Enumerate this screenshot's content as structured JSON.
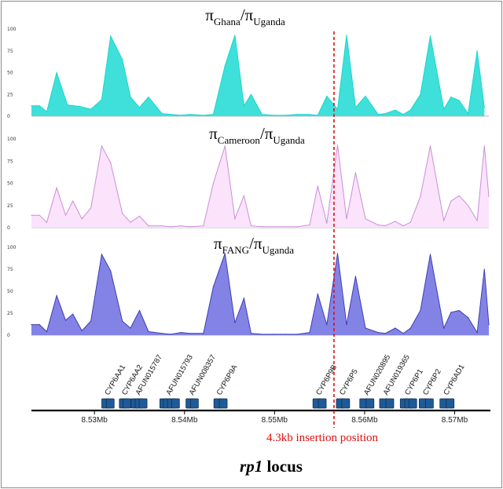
{
  "chart_data": [
    {
      "type": "area",
      "title": {
        "pi": "π",
        "num": "Ghana",
        "slash": "/",
        "den": "Uganda"
      },
      "ylim": [
        0,
        100
      ],
      "yticks": [
        "100",
        "75",
        "50",
        "25",
        "0"
      ],
      "color": "#19d6d0",
      "fill": "#3fe0da",
      "x": [
        8.523,
        8.5239,
        8.5247,
        8.5258,
        8.527,
        8.5284,
        8.5296,
        8.5308,
        8.5318,
        8.5331,
        8.534,
        8.535,
        8.536,
        8.5375,
        8.5385,
        8.5396,
        8.5406,
        8.5421,
        8.5432,
        8.5445,
        8.5456,
        8.5466,
        8.5474,
        8.5486,
        8.5499,
        8.5512,
        8.5525,
        8.5539,
        8.5548,
        8.5558,
        8.557,
        8.558,
        8.559,
        8.5601,
        8.5615,
        8.5623,
        8.5634,
        8.5643,
        8.5651,
        8.5662,
        8.5673,
        8.5688,
        8.5696,
        8.5705,
        8.5715,
        8.5725,
        8.5733
      ],
      "y": [
        12,
        12,
        5,
        50,
        13,
        11,
        8,
        19,
        92,
        65,
        22,
        10,
        22,
        3,
        2,
        1,
        2,
        1,
        2,
        58,
        93,
        12,
        25,
        2,
        1,
        1,
        2,
        2,
        1,
        23,
        8,
        93,
        10,
        23,
        2,
        3,
        7,
        2,
        7,
        25,
        92,
        8,
        22,
        18,
        3,
        75,
        10
      ]
    },
    {
      "type": "area",
      "title": {
        "pi": "π",
        "num": "Cameroon",
        "slash": "/",
        "den": "Uganda"
      },
      "ylim": [
        0,
        100
      ],
      "yticks": [
        "100",
        "75",
        "50",
        "25",
        "0"
      ],
      "color": "#c88fd8",
      "fill": "#fbe3fb",
      "x": [
        8.523,
        8.5239,
        8.5247,
        8.5258,
        8.5268,
        8.5276,
        8.5286,
        8.5296,
        8.5308,
        8.5318,
        8.5331,
        8.534,
        8.535,
        8.536,
        8.5375,
        8.5385,
        8.5396,
        8.5406,
        8.5421,
        8.5432,
        8.5445,
        8.5456,
        8.5466,
        8.5474,
        8.5486,
        8.5499,
        8.5512,
        8.5525,
        8.5539,
        8.5548,
        8.5558,
        8.557,
        8.558,
        8.559,
        8.5601,
        8.5615,
        8.5623,
        8.5634,
        8.5643,
        8.5651,
        8.5662,
        8.5673,
        8.5688,
        8.5696,
        8.5705,
        8.5715,
        8.5725,
        8.5733,
        8.5738
      ],
      "y": [
        14,
        14,
        6,
        45,
        14,
        30,
        10,
        22,
        92,
        73,
        16,
        6,
        13,
        2,
        2,
        1,
        2,
        1,
        2,
        50,
        92,
        10,
        36,
        2,
        1,
        1,
        1,
        1,
        3,
        47,
        5,
        93,
        10,
        62,
        10,
        3,
        2,
        7,
        2,
        6,
        35,
        92,
        8,
        30,
        36,
        25,
        8,
        92,
        35
      ]
    },
    {
      "type": "area",
      "title": {
        "pi": "π",
        "num": "FANG",
        "slash": "/",
        "den": "Uganda"
      },
      "ylim": [
        0,
        100
      ],
      "yticks": [
        "100",
        "75",
        "50",
        "25",
        "0"
      ],
      "color": "#3b3fb4",
      "fill": "#8383e6",
      "x": [
        8.523,
        8.5239,
        8.5247,
        8.5258,
        8.5268,
        8.5276,
        8.5286,
        8.5296,
        8.5308,
        8.5318,
        8.5331,
        8.534,
        8.535,
        8.536,
        8.5375,
        8.5385,
        8.5396,
        8.5406,
        8.5421,
        8.5432,
        8.5445,
        8.5456,
        8.5466,
        8.5474,
        8.5486,
        8.5499,
        8.5512,
        8.5525,
        8.5539,
        8.5548,
        8.5558,
        8.557,
        8.558,
        8.559,
        8.5601,
        8.5615,
        8.5623,
        8.5634,
        8.5643,
        8.5651,
        8.5662,
        8.5673,
        8.5688,
        8.5696,
        8.5705,
        8.5715,
        8.5725,
        8.5733,
        8.5738
      ],
      "y": [
        12,
        12,
        4,
        45,
        17,
        24,
        5,
        16,
        92,
        73,
        16,
        8,
        28,
        4,
        2,
        1,
        3,
        2,
        2,
        55,
        93,
        14,
        42,
        2,
        1,
        1,
        1,
        1,
        3,
        47,
        12,
        93,
        12,
        67,
        8,
        3,
        2,
        8,
        2,
        8,
        28,
        92,
        8,
        26,
        28,
        20,
        3,
        75,
        12
      ]
    },
    {
      "type": "gene-track",
      "x_ticks": [
        {
          "value": 8.53,
          "label": "8.53Mb"
        },
        {
          "value": 8.54,
          "label": "8.54Mb"
        },
        {
          "value": 8.55,
          "label": "8.55Mb"
        },
        {
          "value": 8.56,
          "label": "8.56Mb"
        },
        {
          "value": 8.57,
          "label": "8.57Mb"
        }
      ],
      "genes": [
        {
          "name": "CYP6AA1",
          "start": 8.53105,
          "end": 8.5321,
          "exons": [
            8.53125,
            8.53175
          ]
        },
        {
          "name": "CYP6AA2",
          "start": 8.533,
          "end": 8.53395,
          "exons": [
            8.5332,
            8.5336
          ]
        },
        {
          "name": "AFUN015787",
          "start": 8.5343,
          "end": 8.5357,
          "exons": [
            8.5345,
            8.53495,
            8.5354
          ]
        },
        {
          "name": "AFUN015793",
          "start": 8.5375,
          "end": 8.5393,
          "exons": [
            8.5377,
            8.5381,
            8.53855,
            8.539
          ]
        },
        {
          "name": "AFUN008357",
          "start": 8.5404,
          "end": 8.5415,
          "exons": [
            8.5406,
            8.5411
          ]
        },
        {
          "name": "CYP6P9A",
          "start": 8.5434,
          "end": 8.5446,
          "exons": [
            8.5437,
            8.5443
          ]
        },
        {
          "name": "CYP6P9B",
          "start": 8.5545,
          "end": 8.5556,
          "exons": [
            8.5547,
            8.5553
          ]
        },
        {
          "name": "CYP6P5",
          "start": 8.5571,
          "end": 8.5582,
          "exons": [
            8.5573,
            8.5579
          ]
        },
        {
          "name": "AFUN020895",
          "start": 8.5597,
          "end": 8.561,
          "exons": [
            8.5599,
            8.5606
          ]
        },
        {
          "name": "AFUN019365",
          "start": 8.5619,
          "end": 8.5631,
          "exons": [
            8.5621,
            8.5628
          ]
        },
        {
          "name": "CYP6P1",
          "start": 8.5642,
          "end": 8.5656,
          "exons": [
            8.5644,
            8.5649,
            8.56535
          ]
        },
        {
          "name": "CYP6P2",
          "start": 8.5663,
          "end": 8.5675,
          "exons": [
            8.5665,
            8.5672
          ]
        },
        {
          "name": "CYP6AD1",
          "start": 8.5686,
          "end": 8.5698,
          "exons": [
            8.5688,
            8.5695
          ]
        }
      ]
    }
  ],
  "insertion": {
    "value": 8.5566,
    "label": "4.3kb insertion position",
    "color": "#e01010"
  },
  "locus_label": {
    "italic": "rp1",
    "rest": " locus"
  }
}
